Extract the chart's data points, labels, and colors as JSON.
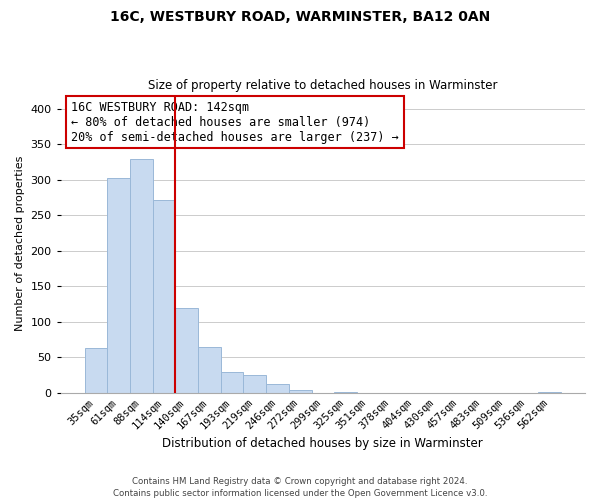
{
  "title": "16C, WESTBURY ROAD, WARMINSTER, BA12 0AN",
  "subtitle": "Size of property relative to detached houses in Warminster",
  "xlabel": "Distribution of detached houses by size in Warminster",
  "ylabel": "Number of detached properties",
  "bin_labels": [
    "35sqm",
    "61sqm",
    "88sqm",
    "114sqm",
    "140sqm",
    "167sqm",
    "193sqm",
    "219sqm",
    "246sqm",
    "272sqm",
    "299sqm",
    "325sqm",
    "351sqm",
    "378sqm",
    "404sqm",
    "430sqm",
    "457sqm",
    "483sqm",
    "509sqm",
    "536sqm",
    "562sqm"
  ],
  "bar_heights": [
    63,
    303,
    330,
    272,
    120,
    65,
    29,
    25,
    13,
    4,
    0,
    2,
    0,
    0,
    0,
    0,
    0,
    0,
    0,
    0,
    2
  ],
  "bar_color": "#c8daf0",
  "bar_edge_color": "#9ab8d8",
  "vline_color": "#cc0000",
  "annotation_text": "16C WESTBURY ROAD: 142sqm\n← 80% of detached houses are smaller (974)\n20% of semi-detached houses are larger (237) →",
  "annotation_box_color": "#ffffff",
  "annotation_box_edge": "#cc0000",
  "ylim": [
    0,
    420
  ],
  "yticks": [
    0,
    50,
    100,
    150,
    200,
    250,
    300,
    350,
    400
  ],
  "footer": "Contains HM Land Registry data © Crown copyright and database right 2024.\nContains public sector information licensed under the Open Government Licence v3.0.",
  "bg_color": "#ffffff",
  "grid_color": "#cccccc"
}
